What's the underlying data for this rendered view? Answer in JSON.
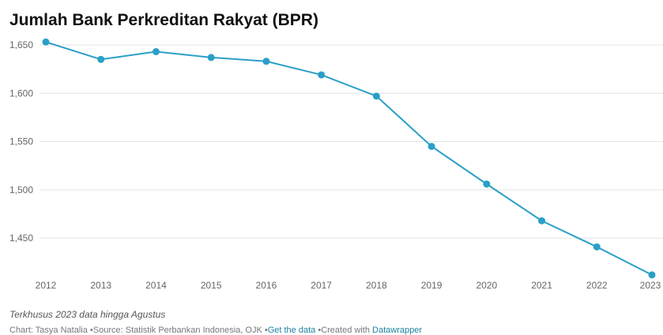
{
  "chart_data": {
    "type": "line",
    "title": "Jumlah Bank Perkreditan Rakyat (BPR)",
    "categories": [
      "2012",
      "2013",
      "2014",
      "2015",
      "2016",
      "2017",
      "2018",
      "2019",
      "2020",
      "2021",
      "2022",
      "2023"
    ],
    "series": [
      {
        "name": "BPR",
        "color": "#2a9fc7",
        "values": [
          1653,
          1635,
          1643,
          1637,
          1633,
          1619,
          1597,
          1545,
          1506,
          1468,
          1441,
          1412
        ]
      }
    ],
    "ylim": [
      1410,
      1660
    ],
    "yticks": [
      {
        "value": 1450,
        "label": "1,450"
      },
      {
        "value": 1500,
        "label": "1,500"
      },
      {
        "value": 1550,
        "label": "1,550"
      },
      {
        "value": 1600,
        "label": "1,600"
      },
      {
        "value": 1650,
        "label": "1,650"
      }
    ],
    "grid": true,
    "note": "Terkhusus 2023 data hingga Agustus",
    "byline": "Chart: Tasya Natalia",
    "source": "Source: Statistik Perbankan Indonesia, OJK",
    "get_data": "Get the data",
    "created_with": "Created with",
    "tool": "Datawrapper"
  }
}
